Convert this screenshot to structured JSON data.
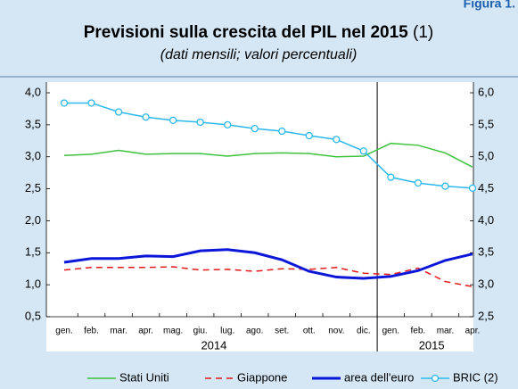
{
  "figure_label": "Figura 1.",
  "chart_data": {
    "type": "line",
    "title": "Previsioni sulla crescita del PIL nel 2015",
    "title_note": "(1)",
    "subtitle": "(dati mensili; valori percentuali)",
    "categories": [
      "gen.",
      "feb.",
      "mar.",
      "apr.",
      "mag.",
      "giu.",
      "lug.",
      "ago.",
      "set.",
      "ott.",
      "nov.",
      "dic.",
      "gen.",
      "feb.",
      "mar.",
      "apr."
    ],
    "year_groups": [
      {
        "label": "2014",
        "start": 0,
        "end": 11
      },
      {
        "label": "2015",
        "start": 12,
        "end": 15
      }
    ],
    "ylim": [
      0.5,
      4.0
    ],
    "yticks": [
      {
        "value": 0.5,
        "label": "0,5"
      },
      {
        "value": 1.0,
        "label": "1,0"
      },
      {
        "value": 1.5,
        "label": "1,5"
      },
      {
        "value": 2.0,
        "label": "2,0"
      },
      {
        "value": 2.5,
        "label": "2,5"
      },
      {
        "value": 3.0,
        "label": "3,0"
      },
      {
        "value": 3.5,
        "label": "3,5"
      },
      {
        "value": 4.0,
        "label": "4,0"
      }
    ],
    "y2lim": [
      2.5,
      6.0
    ],
    "y2ticks": [
      {
        "value": 2.5,
        "label": "2,5"
      },
      {
        "value": 3.0,
        "label": "3,0"
      },
      {
        "value": 3.5,
        "label": "3,5"
      },
      {
        "value": 4.0,
        "label": "4,0"
      },
      {
        "value": 4.5,
        "label": "4,5"
      },
      {
        "value": 5.0,
        "label": "5,0"
      },
      {
        "value": 5.5,
        "label": "5,5"
      },
      {
        "value": 6.0,
        "label": "6,0"
      }
    ],
    "series": [
      {
        "name": "Stati Uniti",
        "color": "#3cc23c",
        "style": "solid",
        "values": [
          3.02,
          3.04,
          3.1,
          3.04,
          3.05,
          3.05,
          3.01,
          3.05,
          3.06,
          3.05,
          3.0,
          3.01,
          3.21,
          3.18,
          3.06,
          2.84
        ]
      },
      {
        "name": "Giappone",
        "color": "#e3191b",
        "style": "dashed",
        "values": [
          1.23,
          1.27,
          1.27,
          1.27,
          1.28,
          1.23,
          1.24,
          1.21,
          1.25,
          1.24,
          1.27,
          1.18,
          1.16,
          1.26,
          1.05,
          0.97
        ]
      },
      {
        "name": "area dell'euro",
        "color": "#0b16d8",
        "style": "thick",
        "values": [
          1.35,
          1.41,
          1.41,
          1.45,
          1.44,
          1.53,
          1.55,
          1.5,
          1.39,
          1.21,
          1.12,
          1.1,
          1.13,
          1.22,
          1.38,
          1.48
        ]
      },
      {
        "name": "BRIC (2)",
        "color": "#2cb8ec",
        "style": "marker",
        "axis": "y2",
        "values": [
          5.84,
          5.84,
          5.7,
          5.62,
          5.57,
          5.54,
          5.5,
          5.44,
          5.4,
          5.33,
          5.27,
          5.09,
          4.68,
          4.59,
          4.54,
          4.51
        ]
      }
    ]
  }
}
